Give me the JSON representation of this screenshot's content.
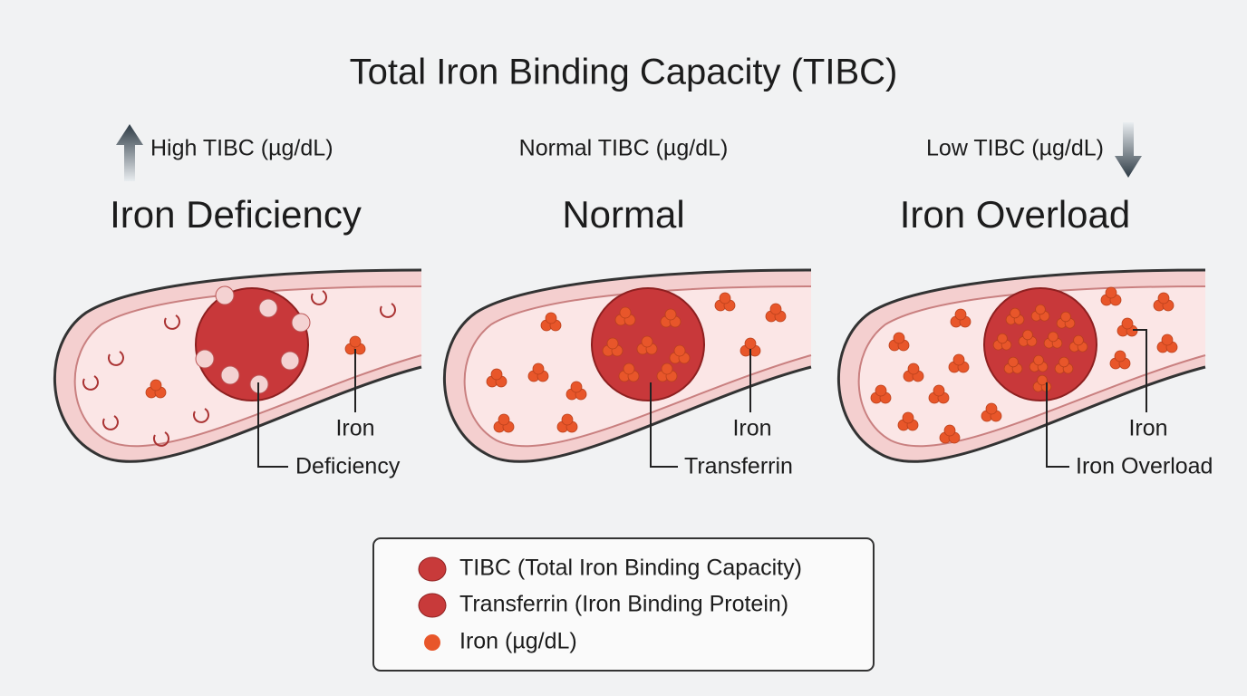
{
  "title": "Total Iron Binding Capacity (TIBC)",
  "panels": [
    {
      "indicator": "High TIBC (µg/dL)",
      "heading": "Iron Deficiency",
      "labels": [
        "Iron",
        "Deficiency"
      ]
    },
    {
      "indicator": "Normal TIBC (µg/dL)",
      "heading": "Normal",
      "labels": [
        "Iron",
        "Transferrin"
      ]
    },
    {
      "indicator": "Low TIBC (µg/dL)",
      "heading": "Iron Overload",
      "labels": [
        "Iron",
        "Iron Overload"
      ]
    }
  ],
  "legend": {
    "items": [
      "TIBC (Total Iron Binding Capacity)",
      "Transferrin (Iron Binding Protein)",
      "Iron (µg/dL)"
    ]
  }
}
